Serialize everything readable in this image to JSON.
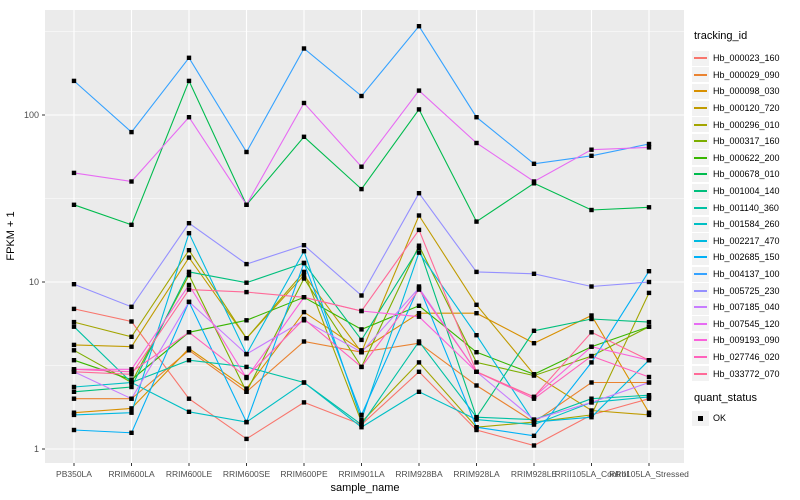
{
  "chart_data": {
    "type": "line",
    "title": "",
    "xlabel": "sample_name",
    "ylabel": "FPKM + 1",
    "y_scale": "log10",
    "y_ticks": [
      1,
      10,
      100
    ],
    "ylim": [
      1,
      400
    ],
    "grid": true,
    "panel_bg": "#EBEBEB",
    "grid_color": "#FFFFFF",
    "tick_label_color": "#4D4D4D",
    "point_color": "#000000",
    "point_shape": "square",
    "legend_position": "right",
    "categories": [
      "PB350LA",
      "RRIM600LA",
      "RRIM600LE",
      "RRIM600SE",
      "RRIM600PE",
      "RRIM901LA",
      "RRIM928BA",
      "RRIM928LA",
      "RRIM928LE",
      "RRII105LA_Control",
      "RRII105LA_Stressed"
    ],
    "legend": {
      "series_title": "tracking_id",
      "shape_title": "quant_status",
      "shape_label": "OK"
    },
    "series": [
      {
        "name": "Hb_000023_160",
        "color": "#F8766D",
        "values": [
          6.9,
          5.8,
          2.0,
          1.15,
          1.9,
          1.4,
          2.9,
          1.3,
          1.05,
          1.6,
          2.0
        ]
      },
      {
        "name": "Hb_000029_090",
        "color": "#EA8331",
        "values": [
          2.0,
          2.0,
          3.9,
          2.2,
          4.4,
          3.8,
          4.3,
          2.4,
          1.45,
          2.5,
          2.5
        ]
      },
      {
        "name": "Hb_000098_030",
        "color": "#D89000",
        "values": [
          1.65,
          1.75,
          4.0,
          2.3,
          6.6,
          3.9,
          6.5,
          6.5,
          4.3,
          6.3,
          1.65
        ]
      },
      {
        "name": "Hb_000120_720",
        "color": "#C09B00",
        "values": [
          4.2,
          4.1,
          14,
          4.6,
          11,
          3.8,
          25,
          7.3,
          2.8,
          1.7,
          1.6
        ]
      },
      {
        "name": "Hb_000296_010",
        "color": "#A3A500",
        "values": [
          5.75,
          4.7,
          15.5,
          4.6,
          11.5,
          1.45,
          3.3,
          1.35,
          1.45,
          1.6,
          8.6
        ]
      },
      {
        "name": "Hb_000317_160",
        "color": "#7CAE00",
        "values": [
          3.9,
          2.5,
          11,
          2.2,
          10.5,
          3.1,
          16.5,
          3.3,
          2.75,
          3.6,
          5.4
        ]
      },
      {
        "name": "Hb_000622_200",
        "color": "#39B600",
        "values": [
          3.4,
          2.6,
          5.0,
          5.9,
          8.1,
          5.2,
          7.2,
          3.8,
          2.8,
          4.1,
          5.4
        ]
      },
      {
        "name": "Hb_000678_010",
        "color": "#00BB4E",
        "values": [
          29,
          22,
          160,
          29,
          74,
          36,
          108,
          23,
          39,
          27,
          28
        ]
      },
      {
        "name": "Hb_001004_140",
        "color": "#00BF7D",
        "values": [
          2.2,
          2.35,
          11.5,
          9.9,
          13,
          4.5,
          16,
          1.55,
          5.1,
          6.0,
          5.75
        ]
      },
      {
        "name": "Hb_001140_360",
        "color": "#00C1A3",
        "values": [
          5.4,
          2.5,
          3.4,
          3.1,
          2.5,
          1.4,
          4.4,
          1.55,
          1.5,
          2.0,
          2.1
        ]
      },
      {
        "name": "Hb_001584_260",
        "color": "#00BFC4",
        "values": [
          2.35,
          2.5,
          1.67,
          1.45,
          2.5,
          1.35,
          2.2,
          1.5,
          1.4,
          1.9,
          2.05
        ]
      },
      {
        "name": "Hb_002217_470",
        "color": "#00BAE0",
        "values": [
          1.6,
          1.65,
          19.6,
          3.7,
          15.3,
          1.5,
          15,
          4.8,
          1.45,
          1.55,
          3.4
        ]
      },
      {
        "name": "Hb_002685_150",
        "color": "#00B0F6",
        "values": [
          1.3,
          1.25,
          7.6,
          1.45,
          13,
          1.6,
          9.4,
          1.35,
          1.2,
          3.3,
          11.6
        ]
      },
      {
        "name": "Hb_004137_100",
        "color": "#35A2FF",
        "values": [
          160,
          79,
          220,
          60,
          250,
          130,
          340,
          97,
          51,
          57,
          67
        ]
      },
      {
        "name": "Hb_005725_230",
        "color": "#9590FF",
        "values": [
          9.7,
          7.1,
          22.5,
          12.8,
          16.6,
          8.3,
          34,
          11.5,
          11.2,
          9.4,
          10
        ]
      },
      {
        "name": "Hb_007185_040",
        "color": "#C77CFF",
        "values": [
          2.9,
          2.0,
          7.6,
          3.7,
          5.9,
          3.8,
          9.2,
          2.9,
          1.5,
          1.9,
          2.5
        ]
      },
      {
        "name": "Hb_007545_120",
        "color": "#E76BF3",
        "values": [
          45,
          40,
          97,
          29,
          118,
          49,
          140,
          68,
          40,
          62,
          64
        ]
      },
      {
        "name": "Hb_009193_090",
        "color": "#FA62DB",
        "values": [
          3.0,
          3.0,
          9.6,
          2.66,
          8.1,
          6.7,
          6.2,
          2.9,
          2.05,
          4.1,
          3.4
        ]
      },
      {
        "name": "Hb_027746_020",
        "color": "#FF62BC",
        "values": [
          3.0,
          2.9,
          5.0,
          2.7,
          6.0,
          3.1,
          9.0,
          2.9,
          2.0,
          3.6,
          2.7
        ]
      },
      {
        "name": "Hb_033772_070",
        "color": "#FF6A98",
        "values": [
          2.9,
          2.8,
          9.0,
          8.7,
          8.1,
          6.7,
          20.5,
          2.9,
          2.05,
          5.0,
          3.4
        ]
      }
    ]
  }
}
